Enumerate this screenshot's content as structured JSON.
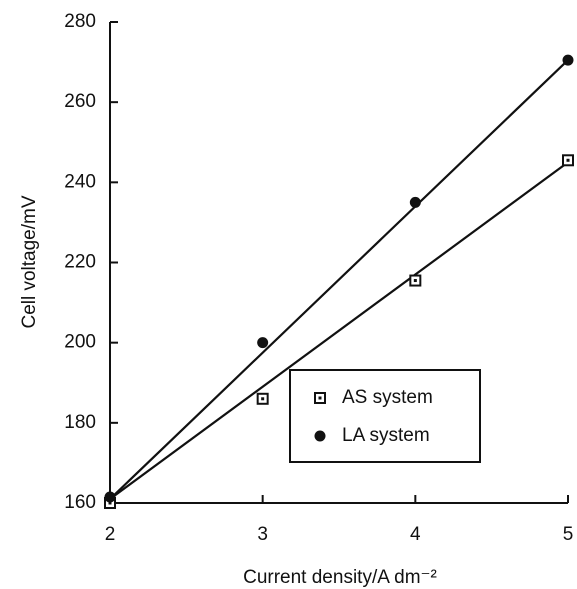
{
  "chart_data": {
    "type": "scatter",
    "xlabel": "Current density/A dm⁻²",
    "ylabel": "Cell voltage/mV",
    "xlim": [
      2,
      5
    ],
    "xticks": [
      2,
      3,
      4,
      5
    ],
    "ylim": [
      160,
      280
    ],
    "yticks": [
      160,
      180,
      200,
      220,
      240,
      260,
      280
    ],
    "legend": "lower-right",
    "series": [
      {
        "name": "AS system",
        "color": "#111111",
        "marker": "square",
        "x": [
          2,
          3,
          4,
          5
        ],
        "values": [
          160,
          186,
          215.5,
          245.5
        ],
        "fit": {
          "x": [
            2,
            5
          ],
          "values": [
            161,
            245
          ]
        }
      },
      {
        "name": "LA system",
        "color": "#111111",
        "marker": "circle",
        "x": [
          2,
          3,
          4,
          5
        ],
        "values": [
          161.5,
          200,
          235,
          270.5
        ],
        "fit": {
          "x": [
            2,
            5
          ],
          "values": [
            161,
            270.5
          ]
        }
      }
    ]
  }
}
